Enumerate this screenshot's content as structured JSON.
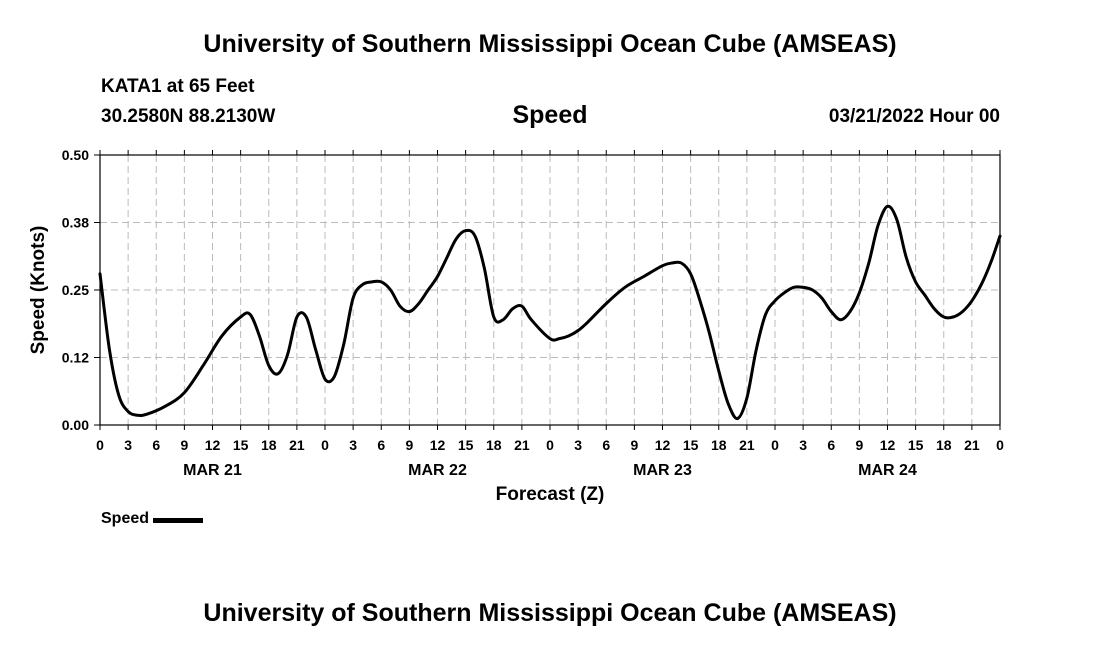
{
  "header": {
    "title": "University of Southern Mississippi Ocean Cube (AMSEAS)",
    "station": "KATA1 at 65 Feet",
    "coords": "30.2580N  88.2130W",
    "subtitle": "Speed",
    "date": "03/21/2022 Hour 00"
  },
  "footer": {
    "title": "University of Southern Mississippi Ocean Cube (AMSEAS)"
  },
  "legend": {
    "label": "Speed"
  },
  "chart_data": {
    "type": "line",
    "title": "Speed",
    "xlabel": "Forecast (Z)",
    "ylabel": "Speed (Knots)",
    "xlim": [
      0,
      96
    ],
    "ylim": [
      0,
      0.5
    ],
    "grid": true,
    "y_ticks": [
      {
        "value": 0.0,
        "label": "0.00"
      },
      {
        "value": 0.125,
        "label": "0.12"
      },
      {
        "value": 0.25,
        "label": "0.25"
      },
      {
        "value": 0.375,
        "label": "0.38"
      },
      {
        "value": 0.5,
        "label": "0.50"
      }
    ],
    "x_tick_labels": [
      "0",
      "3",
      "6",
      "9",
      "12",
      "15",
      "18",
      "21",
      "0",
      "3",
      "6",
      "9",
      "12",
      "15",
      "18",
      "21",
      "0",
      "3",
      "6",
      "9",
      "12",
      "15",
      "18",
      "21",
      "0",
      "3",
      "6",
      "9",
      "12",
      "15",
      "18",
      "21",
      "0"
    ],
    "day_labels": [
      {
        "label": "MAR 21",
        "hour": 12
      },
      {
        "label": "MAR 22",
        "hour": 36
      },
      {
        "label": "MAR 23",
        "hour": 60
      },
      {
        "label": "MAR 24",
        "hour": 84
      }
    ],
    "series": [
      {
        "name": "Speed",
        "color": "#000000",
        "x": [
          0,
          1,
          2,
          3,
          4,
          5,
          7,
          9,
          11,
          13,
          15,
          16,
          17,
          18,
          19,
          20,
          21,
          22,
          23,
          24,
          25,
          26,
          27,
          28,
          29,
          30,
          31,
          32,
          33,
          34,
          35,
          36,
          37,
          38,
          39,
          40,
          41,
          42,
          43,
          44,
          45,
          46,
          48,
          49,
          50,
          51,
          52,
          54,
          56,
          58,
          60,
          61,
          62,
          63,
          64,
          65,
          66,
          67,
          68,
          69,
          70,
          71,
          72,
          73,
          74,
          75,
          76,
          77,
          78,
          79,
          80,
          81,
          82,
          83,
          84,
          85,
          86,
          87,
          88,
          89,
          90,
          91,
          92,
          93,
          94,
          95,
          96
        ],
        "y": [
          0.28,
          0.14,
          0.055,
          0.025,
          0.018,
          0.02,
          0.035,
          0.06,
          0.11,
          0.165,
          0.2,
          0.205,
          0.165,
          0.11,
          0.095,
          0.13,
          0.2,
          0.2,
          0.14,
          0.085,
          0.09,
          0.15,
          0.235,
          0.26,
          0.265,
          0.265,
          0.25,
          0.22,
          0.21,
          0.225,
          0.25,
          0.275,
          0.31,
          0.345,
          0.36,
          0.35,
          0.29,
          0.2,
          0.195,
          0.215,
          0.22,
          0.195,
          0.16,
          0.16,
          0.165,
          0.175,
          0.19,
          0.225,
          0.255,
          0.275,
          0.295,
          0.3,
          0.3,
          0.28,
          0.23,
          0.17,
          0.1,
          0.04,
          0.012,
          0.05,
          0.14,
          0.205,
          0.23,
          0.245,
          0.255,
          0.255,
          0.25,
          0.235,
          0.21,
          0.195,
          0.21,
          0.245,
          0.3,
          0.37,
          0.405,
          0.38,
          0.31,
          0.265,
          0.24,
          0.215,
          0.2,
          0.2,
          0.21,
          0.23,
          0.26,
          0.3,
          0.35
        ]
      }
    ]
  }
}
